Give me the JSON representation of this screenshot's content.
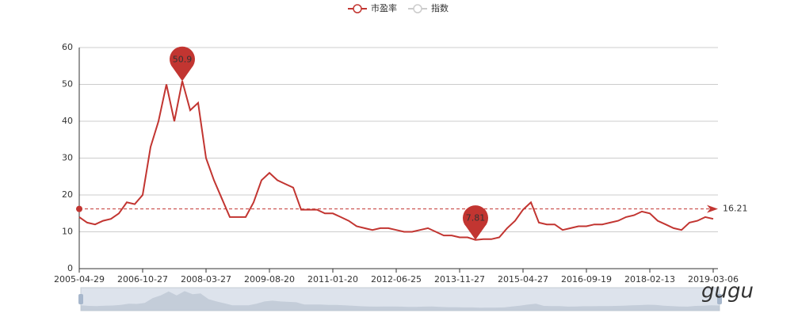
{
  "chart_data": {
    "type": "line",
    "categories": [
      "2005-04-29",
      null,
      null,
      null,
      null,
      null,
      null,
      null,
      "2006-10-27",
      null,
      null,
      null,
      null,
      null,
      null,
      null,
      "2008-03-27",
      null,
      null,
      null,
      null,
      null,
      null,
      null,
      "2009-08-20",
      null,
      null,
      null,
      null,
      null,
      null,
      null,
      "2011-01-20",
      null,
      null,
      null,
      null,
      null,
      null,
      null,
      "2012-06-25",
      null,
      null,
      null,
      null,
      null,
      null,
      null,
      "2013-11-27",
      null,
      null,
      null,
      null,
      null,
      null,
      null,
      "2015-04-27",
      null,
      null,
      null,
      null,
      null,
      null,
      null,
      "2016-09-19",
      null,
      null,
      null,
      null,
      null,
      null,
      null,
      "2018-02-13",
      null,
      null,
      null,
      null,
      null,
      null,
      null,
      "2019-03-06"
    ],
    "series": [
      {
        "name": "市盈率",
        "color": "#c23531",
        "values": [
          14,
          12.5,
          12,
          13,
          13.5,
          15,
          18,
          17.5,
          20,
          33,
          40,
          50,
          40,
          50.9,
          43,
          45,
          30,
          24,
          19,
          14,
          14,
          14,
          18,
          24,
          26,
          24,
          23,
          22,
          16,
          16,
          16,
          15,
          15,
          14,
          13,
          11.5,
          11,
          10.5,
          11,
          11,
          10.5,
          10,
          10,
          10.5,
          11,
          10,
          9,
          9,
          8.5,
          8.5,
          7.81,
          8,
          8,
          8.5,
          11,
          13,
          16,
          18,
          12.5,
          12,
          12,
          10.5,
          11,
          11.5,
          11.5,
          12,
          12,
          12.5,
          13,
          14,
          14.5,
          15.5,
          15,
          13,
          12,
          11,
          10.5,
          12.5,
          13,
          14,
          13.5
        ]
      }
    ],
    "legend_inactive": [
      "指数"
    ],
    "average": 16.21,
    "ylim": [
      0,
      60
    ],
    "yticks": [
      0,
      10,
      20,
      30,
      40,
      50,
      60
    ],
    "grid": true,
    "watermark": "gugu"
  }
}
